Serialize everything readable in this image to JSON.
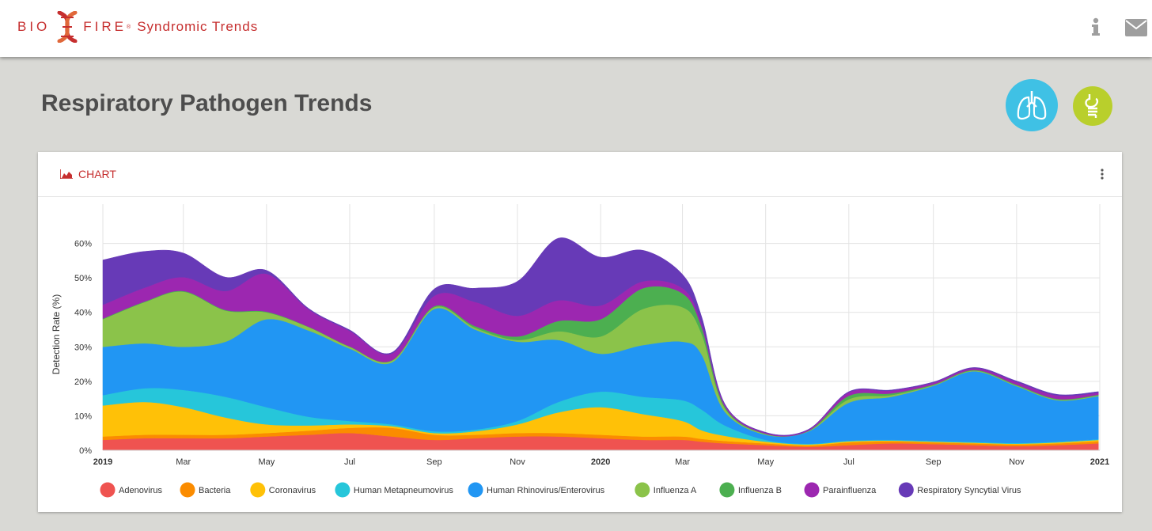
{
  "header": {
    "brand_left": "BIO",
    "brand_right": "FIRE",
    "brand_reg": "®",
    "product": "Syndromic Trends",
    "info_icon": "info-icon",
    "mail_icon": "mail-icon"
  },
  "page": {
    "title": "Respiratory Pathogen Trends",
    "respiratory_icon": "lungs-icon",
    "gastro_icon": "stomach-icon"
  },
  "card": {
    "label": "CHART",
    "label_icon": "area-chart-icon",
    "menu_icon": "kebab-menu-icon"
  },
  "colors": {
    "brand": "#c62f2f",
    "respiratory": "#3fc1e5",
    "gastro": "#b9cf2c"
  },
  "chart_data": {
    "type": "area",
    "stacked": true,
    "ylabel": "Detection Rate (%)",
    "xlabel": "",
    "ylim": [
      0,
      70
    ],
    "y_ticks": [
      0,
      10,
      20,
      30,
      40,
      50,
      60
    ],
    "y_tick_labels": [
      "0%",
      "10%",
      "20%",
      "30%",
      "40%",
      "50%",
      "60%"
    ],
    "x_range": [
      "2019-01-01",
      "2021-01-01"
    ],
    "x_ticks": [
      {
        "date": "2019-01-01",
        "label": "2019",
        "bold": true
      },
      {
        "date": "2019-03-01",
        "label": "Mar",
        "bold": false
      },
      {
        "date": "2019-05-01",
        "label": "May",
        "bold": false
      },
      {
        "date": "2019-07-01",
        "label": "Jul",
        "bold": false
      },
      {
        "date": "2019-09-01",
        "label": "Sep",
        "bold": false
      },
      {
        "date": "2019-11-01",
        "label": "Nov",
        "bold": false
      },
      {
        "date": "2020-01-01",
        "label": "2020",
        "bold": true
      },
      {
        "date": "2020-03-01",
        "label": "Mar",
        "bold": false
      },
      {
        "date": "2020-05-01",
        "label": "May",
        "bold": false
      },
      {
        "date": "2020-07-01",
        "label": "Jul",
        "bold": false
      },
      {
        "date": "2020-09-01",
        "label": "Sep",
        "bold": false
      },
      {
        "date": "2020-11-01",
        "label": "Nov",
        "bold": false
      },
      {
        "date": "2021-01-01",
        "label": "2021",
        "bold": true
      }
    ],
    "grid": true,
    "legend_position": "bottom",
    "x": [
      "2019-01-01",
      "2019-02-01",
      "2019-03-01",
      "2019-04-01",
      "2019-05-01",
      "2019-06-01",
      "2019-07-01",
      "2019-08-01",
      "2019-09-01",
      "2019-10-01",
      "2019-11-01",
      "2019-12-01",
      "2020-01-01",
      "2020-02-01",
      "2020-03-01",
      "2020-03-15",
      "2020-04-01",
      "2020-05-01",
      "2020-06-01",
      "2020-07-01",
      "2020-08-01",
      "2020-09-01",
      "2020-10-01",
      "2020-11-01",
      "2020-12-01",
      "2020-12-31"
    ],
    "series": [
      {
        "name": "Adenovirus",
        "color": "#ef5350",
        "values": [
          3.0,
          3.5,
          3.5,
          3.5,
          4.0,
          4.5,
          5.0,
          4.0,
          3.0,
          3.5,
          4.0,
          4.0,
          3.5,
          3.0,
          3.0,
          2.5,
          2.0,
          1.5,
          1.0,
          1.5,
          2.0,
          1.8,
          1.5,
          1.2,
          1.5,
          2.0
        ]
      },
      {
        "name": "Bacteria",
        "color": "#fb8c00",
        "values": [
          1.0,
          1.0,
          1.0,
          1.0,
          1.0,
          1.2,
          1.5,
          2.5,
          1.5,
          1.0,
          1.0,
          1.0,
          1.0,
          1.0,
          1.0,
          0.8,
          0.7,
          0.5,
          0.4,
          0.8,
          0.6,
          0.5,
          0.5,
          0.5,
          0.5,
          0.6
        ]
      },
      {
        "name": "Coronavirus",
        "color": "#ffc107",
        "values": [
          9.0,
          9.5,
          8.0,
          5.0,
          2.5,
          1.5,
          1.0,
          0.5,
          0.5,
          1.0,
          2.5,
          6.0,
          8.0,
          6.5,
          4.5,
          2.5,
          1.5,
          0.5,
          0.3,
          0.3,
          0.2,
          0.2,
          0.2,
          0.2,
          0.3,
          0.4
        ]
      },
      {
        "name": "Human Metapneumovirus",
        "color": "#26c6da",
        "values": [
          3.0,
          4.0,
          5.0,
          6.0,
          5.0,
          2.5,
          1.0,
          0.5,
          0.5,
          0.5,
          1.0,
          3.0,
          4.5,
          5.0,
          6.0,
          6.0,
          3.0,
          0.5,
          0.2,
          0.2,
          0.2,
          0.2,
          0.2,
          0.2,
          0.2,
          0.2
        ]
      },
      {
        "name": "Human Rhinovirus/Enterovirus",
        "color": "#2196f3",
        "values": [
          14.0,
          13.0,
          12.5,
          16.0,
          25.5,
          25.0,
          21.0,
          18.0,
          35.5,
          29.0,
          23.0,
          18.0,
          11.0,
          15.0,
          17.0,
          16.0,
          4.0,
          1.5,
          3.5,
          11.0,
          12.5,
          16.0,
          20.5,
          16.5,
          12.0,
          12.5
        ]
      },
      {
        "name": "Influenza A",
        "color": "#8bc34a",
        "values": [
          8.0,
          12.0,
          16.0,
          9.0,
          2.0,
          1.0,
          0.5,
          0.5,
          0.5,
          0.5,
          0.5,
          2.5,
          5.0,
          10.5,
          10.0,
          6.0,
          1.0,
          0.2,
          0.1,
          1.0,
          0.5,
          0.2,
          0.2,
          0.2,
          0.2,
          0.2
        ]
      },
      {
        "name": "Influenza B",
        "color": "#4caf50",
        "values": [
          0.2,
          0.2,
          0.2,
          0.2,
          0.2,
          0.1,
          0.1,
          0.1,
          0.3,
          0.5,
          1.0,
          3.0,
          5.0,
          6.0,
          4.0,
          2.0,
          0.5,
          0.1,
          0.1,
          1.0,
          0.5,
          0.2,
          0.2,
          0.2,
          0.2,
          0.2
        ]
      },
      {
        "name": "Parainfluenza",
        "color": "#9c27b0",
        "values": [
          4.0,
          4.0,
          4.0,
          5.5,
          11.0,
          5.0,
          4.5,
          2.0,
          3.0,
          7.0,
          6.0,
          6.0,
          4.0,
          2.0,
          1.5,
          1.0,
          0.5,
          0.3,
          0.3,
          1.0,
          0.8,
          0.5,
          0.5,
          0.8,
          1.0,
          0.6
        ]
      },
      {
        "name": "Respiratory Syncytial Virus",
        "color": "#673ab7",
        "values": [
          13.0,
          10.5,
          7.0,
          4.0,
          1.0,
          0.3,
          0.3,
          0.3,
          2.0,
          4.0,
          10.0,
          18.0,
          14.0,
          9.0,
          4.0,
          2.0,
          0.3,
          0.1,
          0.1,
          0.2,
          0.2,
          0.2,
          0.2,
          0.3,
          0.3,
          0.3
        ]
      }
    ]
  }
}
